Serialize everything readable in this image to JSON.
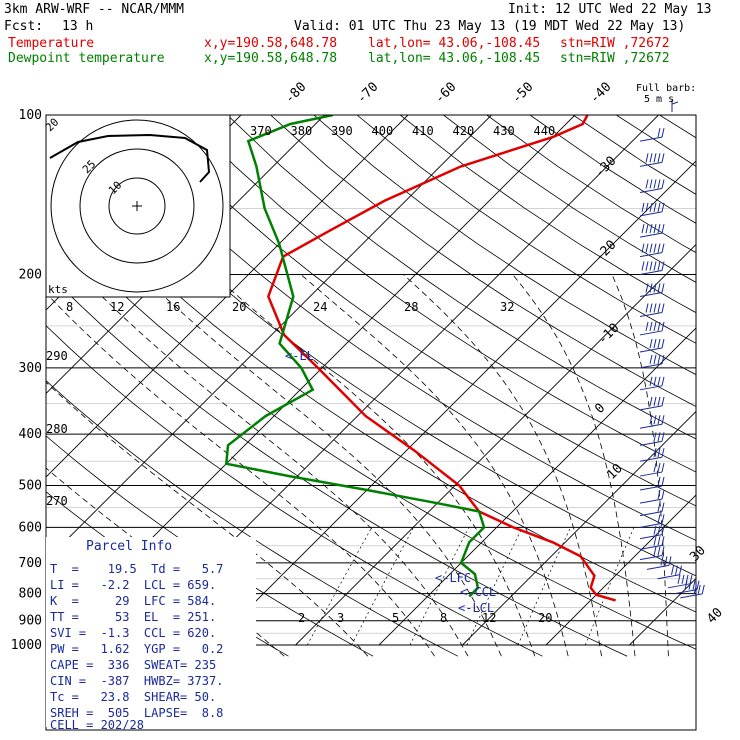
{
  "header": {
    "model": "3km ARW-WRF -- NCAR/MMM",
    "init": "Init: 12 UTC Wed 22 May 13",
    "fcst_label": "Fcst:",
    "fcst_value": "13 h",
    "valid": "Valid: 01 UTC Thu 23 May 13 (19 MDT Wed 22 May 13)",
    "temp_label": "Temperature",
    "dew_label": "Dewpoint temperature",
    "temp_xy": "x,y=190.58,648.78",
    "temp_latlon": "lat,lon= 43.06,-108.45",
    "temp_stn": "stn=RIW ,72672",
    "dew_xy": "x,y=190.58,648.78",
    "dew_latlon": "lat,lon= 43.06,-108.45",
    "dew_stn": "stn=RIW ,72672"
  },
  "full_barb": {
    "line1": "Full barb:",
    "line2": "5 m s"
  },
  "hodograph": {
    "kts_label": "kts",
    "ring_label_outer": "25",
    "ring_label_inner": "10",
    "ring_label_20": "20"
  },
  "parcel_info": {
    "title": "Parcel Info",
    "rows": [
      "T  =    19.5  Td =   5.7",
      "LI =   -2.2  LCL = 659.",
      "K  =     29  LFC = 584.",
      "TT =     53  EL  = 251.",
      "SVI =  -1.3  CCL = 620.",
      "PW =   1.62  YGP =   0.2",
      "CAPE =  336  SWEAT= 235",
      "CIN =  -387  HWBZ= 3737.",
      "Tc =   23.8  SHEAR= 50.",
      "SREH =  505  LAPSE=  8.8",
      "CELL = 202/28"
    ]
  },
  "level_labels": {
    "el": "<-EL",
    "lfc": "<-LFC",
    "ccl": "<-CCL",
    "lcl": "<-LCL"
  },
  "chart_data": {
    "type": "line",
    "pressure_ticks": [
      100,
      200,
      300,
      400,
      500,
      600,
      700,
      800,
      900,
      1000
    ],
    "isotherm_labels_top": [
      -80,
      -70,
      -60,
      -50,
      -40
    ],
    "isotherm_labels_right": [
      -30,
      -20,
      -10,
      0,
      10
    ],
    "isotherm_labels_lower_right": [
      30,
      40
    ],
    "theta_labels": [
      370,
      380,
      390,
      400,
      410,
      420,
      430,
      440
    ],
    "theta_labels_left": [
      290,
      280,
      270
    ],
    "theta_e_labels": [
      8,
      12,
      16,
      20,
      24,
      28,
      32
    ],
    "mixing_ratio_labels": [
      2,
      3,
      5,
      8,
      12,
      20
    ],
    "series": [
      {
        "name": "Temperature",
        "color": "#e00000",
        "points": [
          [
            824,
            23.0
          ],
          [
            804,
            20.0
          ],
          [
            780,
            18.5
          ],
          [
            740,
            17.5
          ],
          [
            680,
            13.5
          ],
          [
            640,
            8.5
          ],
          [
            600,
            2.0
          ],
          [
            560,
            -4.0
          ],
          [
            500,
            -9.5
          ],
          [
            430,
            -19.0
          ],
          [
            370,
            -29.0
          ],
          [
            300,
            -40.5
          ],
          [
            260,
            -48.5
          ],
          [
            220,
            -55.0
          ],
          [
            185,
            -58.0
          ],
          [
            165,
            -55.5
          ],
          [
            145,
            -52.5
          ],
          [
            125,
            -47.5
          ],
          [
            110,
            -40.0
          ],
          [
            104,
            -38.0
          ],
          [
            100,
            -38.5
          ]
        ]
      },
      {
        "name": "Dewpoint temperature",
        "color": "#008000",
        "points": [
          [
            810,
            5.0
          ],
          [
            780,
            5.0
          ],
          [
            735,
            3.0
          ],
          [
            700,
            0.0
          ],
          [
            640,
            -1.5
          ],
          [
            600,
            -1.5
          ],
          [
            560,
            -4.0
          ],
          [
            540,
            -10.0
          ],
          [
            510,
            -20.0
          ],
          [
            480,
            -31.0
          ],
          [
            455,
            -40.0
          ],
          [
            420,
            -42.0
          ],
          [
            370,
            -41.0
          ],
          [
            330,
            -38.5
          ],
          [
            300,
            -42.5
          ],
          [
            270,
            -48.0
          ],
          [
            220,
            -52.0
          ],
          [
            175,
            -60.0
          ],
          [
            150,
            -66.0
          ],
          [
            125,
            -72.0
          ],
          [
            112,
            -76.0
          ],
          [
            104,
            -73.0
          ],
          [
            100,
            -69.0
          ]
        ]
      }
    ],
    "wind_barbs_kts": [
      {
        "p": 112,
        "speed": 20
      },
      {
        "p": 125,
        "speed": 45
      },
      {
        "p": 140,
        "speed": 50
      },
      {
        "p": 155,
        "speed": 55
      },
      {
        "p": 170,
        "speed": 60
      },
      {
        "p": 185,
        "speed": 55
      },
      {
        "p": 200,
        "speed": 55
      },
      {
        "p": 220,
        "speed": 50
      },
      {
        "p": 240,
        "speed": 45
      },
      {
        "p": 260,
        "speed": 45
      },
      {
        "p": 280,
        "speed": 40
      },
      {
        "p": 300,
        "speed": 40
      },
      {
        "p": 330,
        "speed": 40
      },
      {
        "p": 360,
        "speed": 35
      },
      {
        "p": 390,
        "speed": 35
      },
      {
        "p": 420,
        "speed": 30
      },
      {
        "p": 450,
        "speed": 25
      },
      {
        "p": 480,
        "speed": 25
      },
      {
        "p": 510,
        "speed": 20
      },
      {
        "p": 540,
        "speed": 20
      },
      {
        "p": 570,
        "speed": 20
      },
      {
        "p": 600,
        "speed": 20
      },
      {
        "p": 630,
        "speed": 25
      },
      {
        "p": 660,
        "speed": 25
      },
      {
        "p": 690,
        "speed": 30
      },
      {
        "p": 720,
        "speed": 30
      },
      {
        "p": 750,
        "speed": 30
      },
      {
        "p": 780,
        "speed": 35
      },
      {
        "p": 800,
        "speed": 35
      },
      {
        "p": 815,
        "speed": 30
      }
    ]
  }
}
